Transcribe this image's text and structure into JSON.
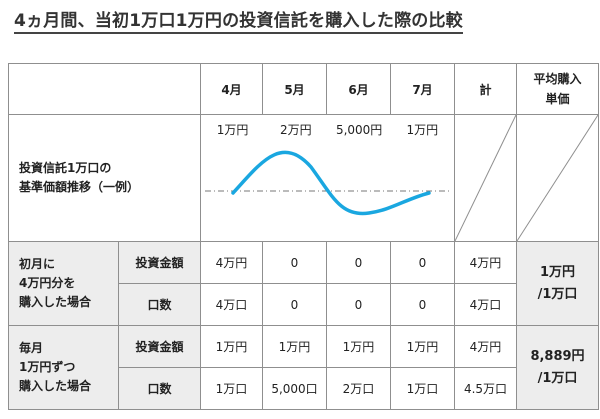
{
  "title": "4ヵ月間、当初1万口1万円の投資信託を購入した際の比較",
  "header": {
    "months": [
      "4月",
      "5月",
      "6月",
      "7月"
    ],
    "total": "計",
    "avg_line1": "平均購入",
    "avg_line2": "単価"
  },
  "price_row": {
    "label_line1": "投資信託1万口の",
    "label_line2": "基準価額推移（一例）",
    "prices": [
      "1万円",
      "2万円",
      "5,000円",
      "1万円"
    ]
  },
  "lump_sum": {
    "label_line1": "初月に",
    "label_line2": "4万円分を",
    "label_line3": "購入した場合",
    "rows": [
      {
        "name": "投資金額",
        "values": [
          "4万円",
          "0",
          "0",
          "0"
        ],
        "total": "4万円"
      },
      {
        "name": "口数",
        "values": [
          "4万口",
          "0",
          "0",
          "0"
        ],
        "total": "4万口"
      }
    ],
    "avg_line1": "1万円",
    "avg_line2": "/1万口"
  },
  "monthly": {
    "label_line1": "毎月",
    "label_line2": "1万円ずつ",
    "label_line3": "購入した場合",
    "rows": [
      {
        "name": "投資金額",
        "values": [
          "1万円",
          "1万円",
          "1万円",
          "1万円"
        ],
        "total": "4万円"
      },
      {
        "name": "口数",
        "values": [
          "1万口",
          "5,000口",
          "2万口",
          "1万口"
        ],
        "total": "4.5万口"
      }
    ],
    "avg_line1": "8,889円",
    "avg_line2": "/1万口"
  },
  "colors": {
    "curve": "#1aa7e0",
    "shade": "#ededed",
    "border": "#8f8f8f"
  }
}
